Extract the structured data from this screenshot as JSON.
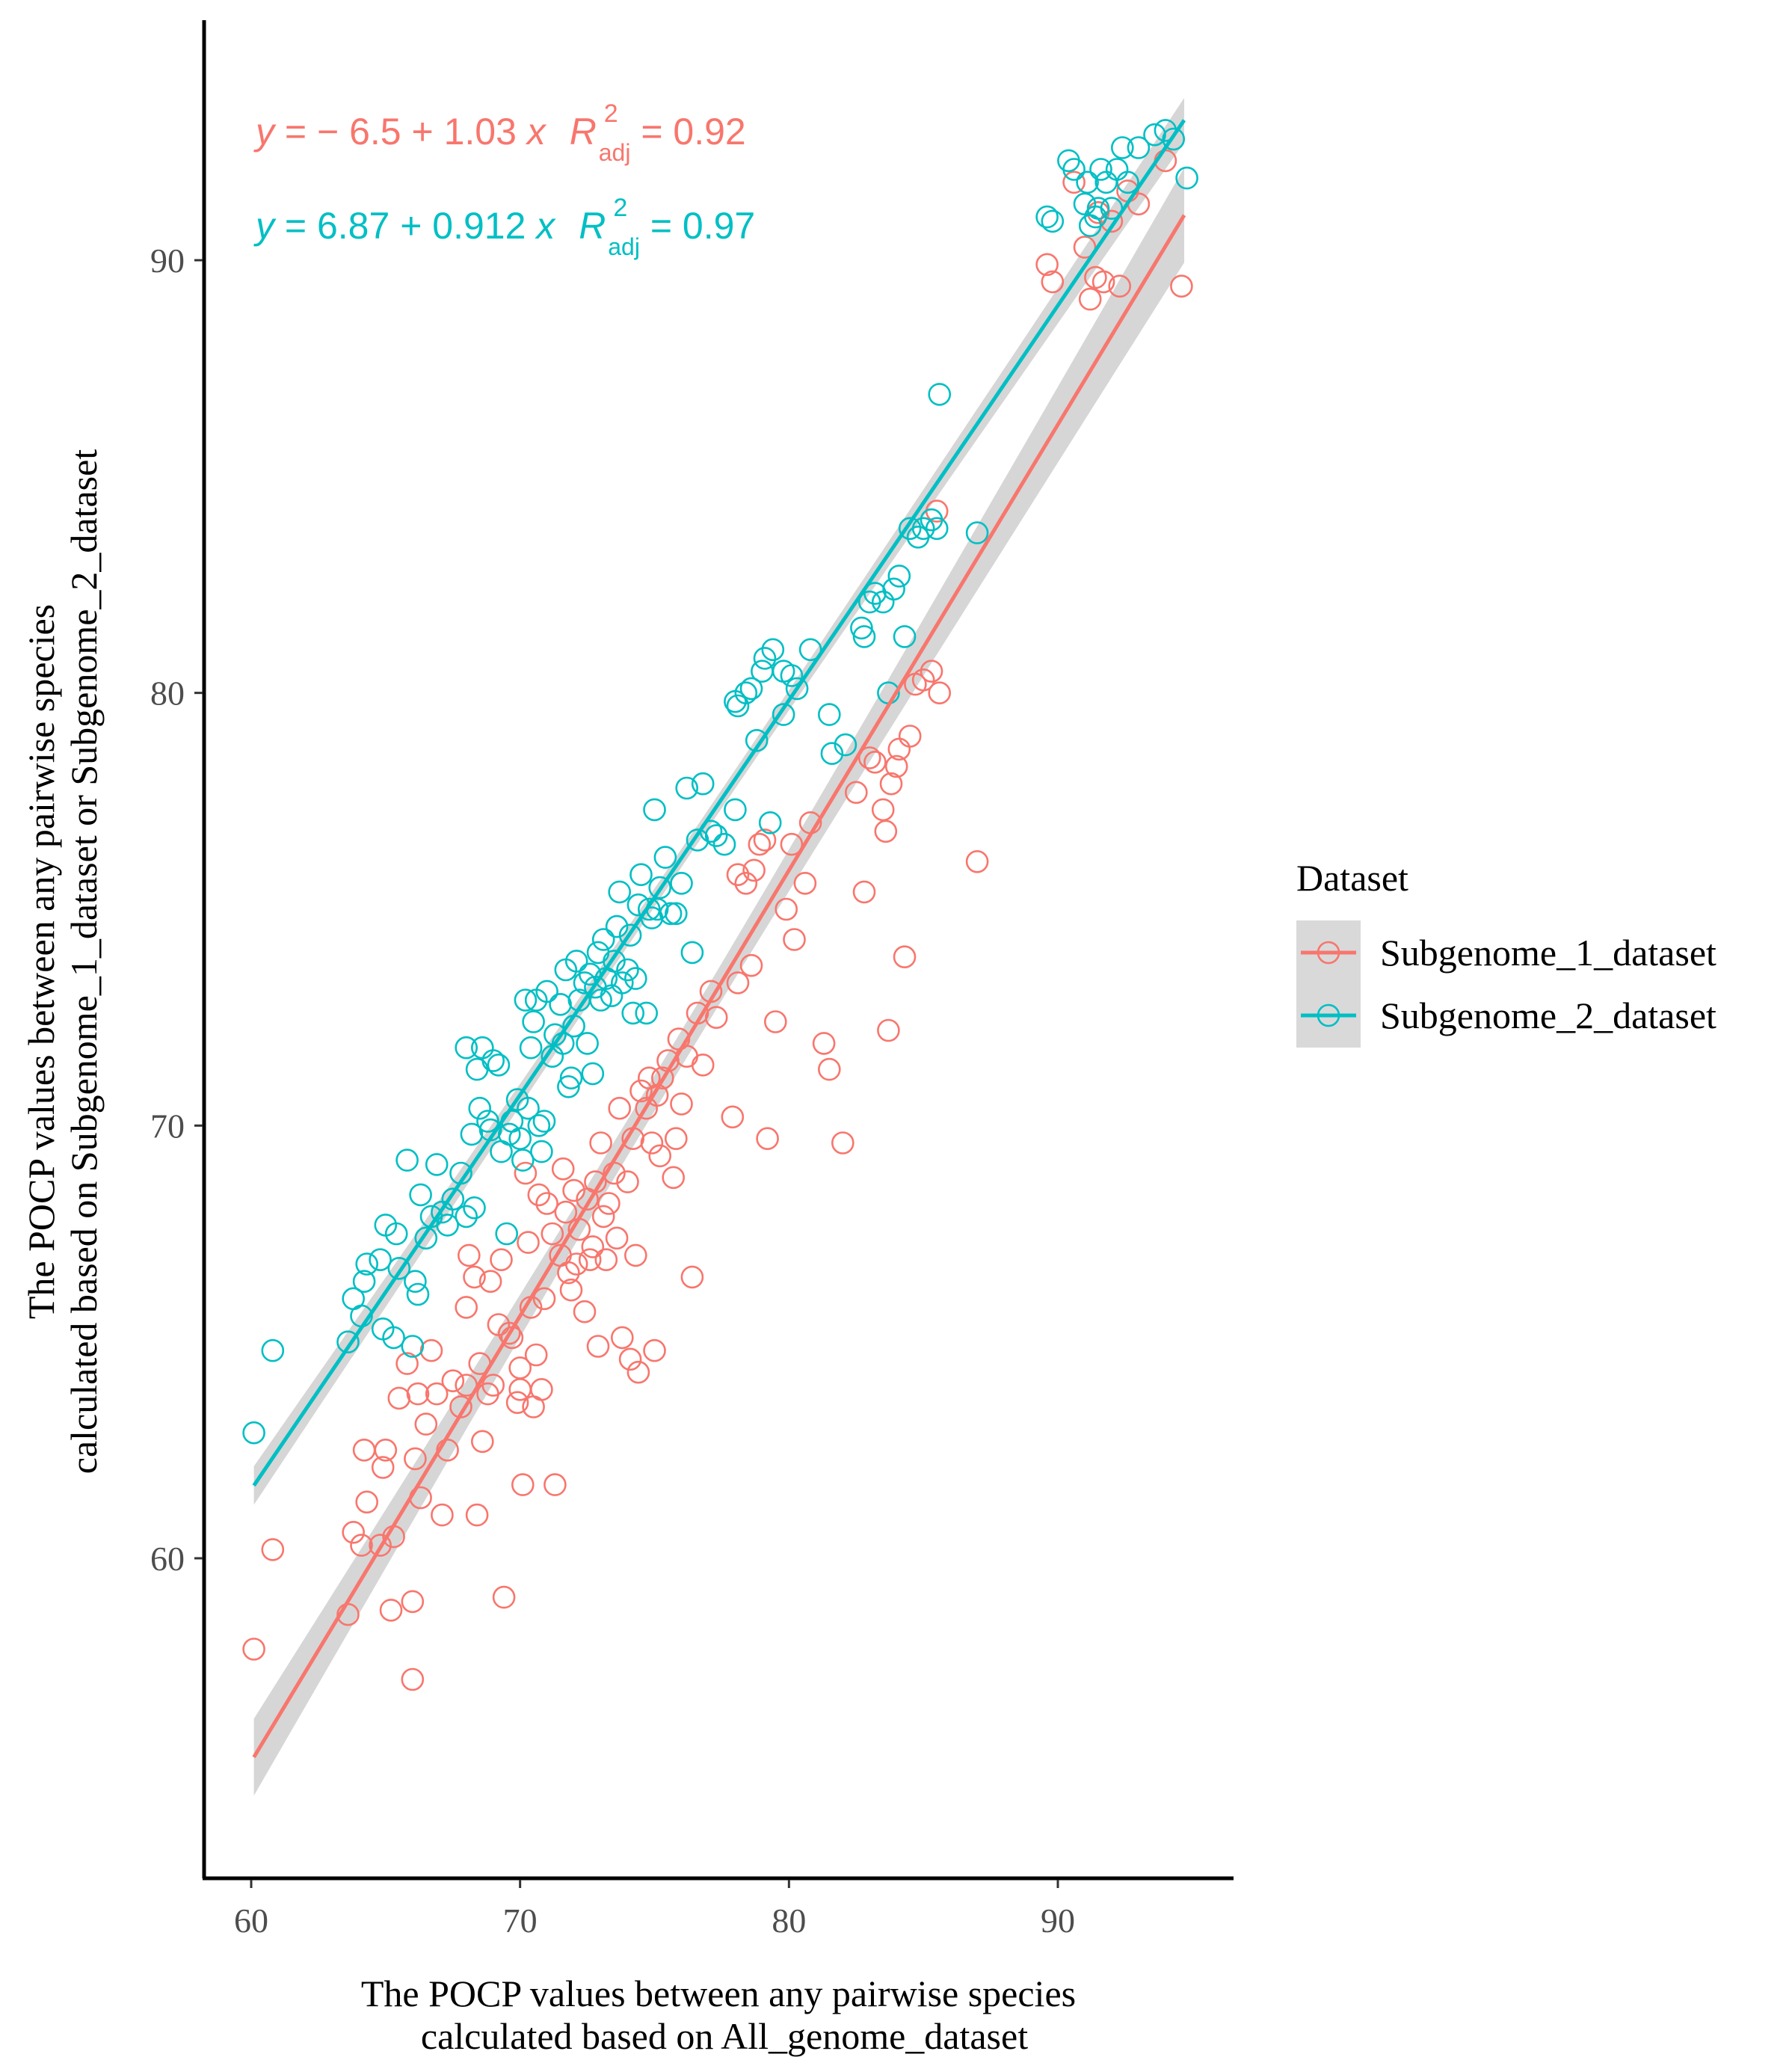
{
  "chart_data": {
    "type": "scatter",
    "title": "",
    "xlabel_lines": [
      "The POCP values between any pairwise species",
      "calculated based on All_genome_dataset"
    ],
    "ylabel_lines": [
      "The POCP values between any pairwise species",
      "calculated based on Subgenome_1_dataset or Subgenome_2_dataset"
    ],
    "xlim": [
      58.5,
      96.5
    ],
    "ylim": [
      52.5,
      95.5
    ],
    "xticks": [
      60,
      70,
      80,
      90
    ],
    "yticks": [
      60,
      70,
      80,
      90
    ],
    "grid": false,
    "legend": {
      "title": "Dataset",
      "position": "right"
    },
    "series": [
      {
        "name": "Subgenome_1_dataset",
        "color": "#F8766D",
        "fit": {
          "intercept": -6.5,
          "slope": 1.03,
          "x_range": [
            60.1,
            94.7
          ]
        },
        "equation": {
          "y_label": "y",
          "rhs": " = − 6.5 + 1.03 ",
          "x_label": "x",
          "r2_label": "R",
          "r2_sup": "2",
          "r2_sub": "adj",
          "r2_value": " = 0.92"
        },
        "points": [
          [
            60.1,
            57.9
          ],
          [
            60.8,
            60.2
          ],
          [
            63.6,
            58.7
          ],
          [
            63.8,
            60.6
          ],
          [
            64.1,
            60.3
          ],
          [
            64.2,
            62.5
          ],
          [
            64.3,
            61.3
          ],
          [
            64.8,
            60.3
          ],
          [
            64.9,
            62.1
          ],
          [
            65.0,
            62.5
          ],
          [
            65.3,
            60.5
          ],
          [
            65.2,
            58.8
          ],
          [
            65.5,
            63.7
          ],
          [
            65.8,
            64.5
          ],
          [
            66.0,
            59.0
          ],
          [
            66.0,
            57.2
          ],
          [
            66.1,
            62.3
          ],
          [
            66.2,
            63.8
          ],
          [
            66.3,
            61.4
          ],
          [
            66.5,
            63.1
          ],
          [
            66.7,
            64.8
          ],
          [
            66.9,
            63.8
          ],
          [
            67.1,
            61.0
          ],
          [
            67.3,
            62.5
          ],
          [
            67.5,
            64.1
          ],
          [
            67.8,
            63.5
          ],
          [
            68.0,
            64.0
          ],
          [
            68.0,
            65.8
          ],
          [
            68.1,
            67.0
          ],
          [
            68.3,
            66.5
          ],
          [
            68.4,
            61.0
          ],
          [
            68.5,
            64.5
          ],
          [
            68.6,
            62.7
          ],
          [
            68.8,
            63.8
          ],
          [
            68.9,
            66.4
          ],
          [
            69.0,
            64.0
          ],
          [
            69.2,
            65.4
          ],
          [
            69.3,
            66.9
          ],
          [
            69.4,
            59.1
          ],
          [
            69.6,
            65.2
          ],
          [
            69.7,
            65.1
          ],
          [
            69.9,
            63.6
          ],
          [
            70.0,
            63.9
          ],
          [
            70.0,
            64.4
          ],
          [
            70.1,
            61.7
          ],
          [
            70.2,
            68.9
          ],
          [
            70.3,
            67.3
          ],
          [
            70.4,
            65.8
          ],
          [
            70.5,
            63.5
          ],
          [
            70.6,
            64.7
          ],
          [
            70.7,
            68.4
          ],
          [
            70.8,
            63.9
          ],
          [
            70.9,
            66.0
          ],
          [
            71.0,
            68.2
          ],
          [
            71.2,
            67.5
          ],
          [
            71.3,
            61.7
          ],
          [
            71.5,
            67.0
          ],
          [
            71.6,
            69.0
          ],
          [
            71.7,
            68.0
          ],
          [
            71.8,
            66.6
          ],
          [
            71.9,
            66.2
          ],
          [
            72.0,
            68.5
          ],
          [
            72.1,
            66.8
          ],
          [
            72.2,
            67.6
          ],
          [
            72.4,
            65.7
          ],
          [
            72.5,
            68.3
          ],
          [
            72.6,
            66.9
          ],
          [
            72.7,
            67.2
          ],
          [
            72.8,
            68.7
          ],
          [
            72.9,
            64.9
          ],
          [
            73.0,
            69.6
          ],
          [
            73.1,
            67.9
          ],
          [
            73.2,
            66.9
          ],
          [
            73.3,
            68.2
          ],
          [
            73.5,
            68.9
          ],
          [
            73.6,
            67.4
          ],
          [
            73.7,
            70.4
          ],
          [
            73.8,
            65.1
          ],
          [
            74.0,
            68.7
          ],
          [
            74.1,
            64.6
          ],
          [
            74.2,
            69.7
          ],
          [
            74.3,
            67.0
          ],
          [
            74.4,
            64.3
          ],
          [
            74.5,
            70.8
          ],
          [
            74.7,
            70.4
          ],
          [
            74.8,
            71.1
          ],
          [
            74.9,
            69.6
          ],
          [
            75.0,
            64.8
          ],
          [
            75.1,
            70.7
          ],
          [
            75.2,
            69.3
          ],
          [
            75.3,
            71.1
          ],
          [
            75.5,
            71.5
          ],
          [
            75.7,
            68.8
          ],
          [
            75.8,
            69.7
          ],
          [
            75.9,
            72.0
          ],
          [
            76.0,
            70.5
          ],
          [
            76.2,
            71.6
          ],
          [
            76.4,
            66.5
          ],
          [
            76.6,
            72.6
          ],
          [
            76.8,
            71.4
          ],
          [
            77.1,
            73.1
          ],
          [
            77.3,
            72.5
          ],
          [
            77.9,
            70.2
          ],
          [
            78.1,
            73.3
          ],
          [
            78.1,
            75.8
          ],
          [
            78.4,
            75.6
          ],
          [
            78.6,
            73.7
          ],
          [
            78.7,
            75.9
          ],
          [
            78.9,
            76.5
          ],
          [
            79.1,
            76.6
          ],
          [
            79.2,
            69.7
          ],
          [
            79.5,
            72.4
          ],
          [
            79.9,
            75.0
          ],
          [
            80.1,
            76.5
          ],
          [
            80.2,
            74.3
          ],
          [
            80.6,
            75.6
          ],
          [
            80.8,
            77.0
          ],
          [
            81.3,
            71.9
          ],
          [
            81.5,
            71.3
          ],
          [
            82.0,
            69.6
          ],
          [
            82.5,
            77.7
          ],
          [
            82.8,
            75.4
          ],
          [
            83.0,
            78.5
          ],
          [
            83.2,
            78.4
          ],
          [
            83.5,
            77.3
          ],
          [
            83.6,
            76.8
          ],
          [
            83.7,
            72.2
          ],
          [
            83.8,
            77.9
          ],
          [
            84.0,
            78.3
          ],
          [
            84.1,
            78.7
          ],
          [
            84.3,
            73.9
          ],
          [
            84.5,
            79.0
          ],
          [
            84.7,
            80.2
          ],
          [
            85.0,
            80.3
          ],
          [
            85.3,
            80.5
          ],
          [
            85.5,
            84.2
          ],
          [
            85.6,
            80.0
          ],
          [
            87.0,
            76.1
          ],
          [
            89.6,
            89.9
          ],
          [
            89.8,
            89.5
          ],
          [
            90.6,
            91.8
          ],
          [
            91.0,
            90.3
          ],
          [
            91.2,
            89.1
          ],
          [
            91.4,
            89.6
          ],
          [
            91.5,
            91.1
          ],
          [
            91.7,
            89.5
          ],
          [
            92.0,
            90.9
          ],
          [
            92.3,
            89.4
          ],
          [
            92.6,
            91.6
          ],
          [
            93.0,
            91.3
          ],
          [
            94.0,
            92.3
          ],
          [
            94.6,
            89.4
          ]
        ]
      },
      {
        "name": "Subgenome_2_dataset",
        "color": "#00BFC4",
        "fit": {
          "intercept": 6.87,
          "slope": 0.912,
          "x_range": [
            60.1,
            94.7
          ]
        },
        "equation": {
          "y_label": "y",
          "rhs": " = 6.87 + 0.912 ",
          "x_label": "x",
          "r2_label": "R",
          "r2_sup": "2",
          "r2_sub": "adj",
          "r2_value": " = 0.97"
        },
        "points": [
          [
            60.1,
            62.9
          ],
          [
            60.8,
            64.8
          ],
          [
            63.6,
            65.0
          ],
          [
            63.8,
            66.0
          ],
          [
            64.1,
            65.6
          ],
          [
            64.2,
            66.4
          ],
          [
            64.3,
            66.8
          ],
          [
            64.8,
            66.9
          ],
          [
            64.9,
            65.3
          ],
          [
            65.0,
            67.7
          ],
          [
            65.3,
            65.1
          ],
          [
            65.4,
            67.5
          ],
          [
            65.5,
            66.7
          ],
          [
            65.8,
            69.2
          ],
          [
            66.0,
            64.9
          ],
          [
            66.1,
            66.4
          ],
          [
            66.2,
            66.1
          ],
          [
            66.3,
            68.4
          ],
          [
            66.5,
            67.4
          ],
          [
            66.7,
            67.9
          ],
          [
            66.9,
            69.1
          ],
          [
            67.1,
            68.0
          ],
          [
            67.3,
            67.7
          ],
          [
            67.5,
            68.3
          ],
          [
            67.8,
            68.9
          ],
          [
            68.0,
            67.9
          ],
          [
            68.0,
            71.8
          ],
          [
            68.2,
            69.8
          ],
          [
            68.3,
            68.1
          ],
          [
            68.4,
            71.3
          ],
          [
            68.5,
            70.4
          ],
          [
            68.6,
            71.8
          ],
          [
            68.8,
            70.1
          ],
          [
            68.9,
            69.9
          ],
          [
            69.0,
            71.5
          ],
          [
            69.2,
            71.4
          ],
          [
            69.3,
            69.4
          ],
          [
            69.5,
            67.5
          ],
          [
            69.6,
            69.8
          ],
          [
            69.7,
            70.1
          ],
          [
            69.9,
            70.6
          ],
          [
            70.0,
            69.7
          ],
          [
            70.1,
            69.2
          ],
          [
            70.2,
            72.9
          ],
          [
            70.3,
            70.4
          ],
          [
            70.4,
            71.8
          ],
          [
            70.5,
            72.4
          ],
          [
            70.6,
            72.9
          ],
          [
            70.7,
            70.0
          ],
          [
            70.8,
            69.4
          ],
          [
            70.9,
            70.1
          ],
          [
            71.0,
            73.1
          ],
          [
            71.2,
            71.6
          ],
          [
            71.3,
            72.1
          ],
          [
            71.5,
            72.8
          ],
          [
            71.6,
            71.9
          ],
          [
            71.7,
            73.6
          ],
          [
            71.8,
            70.9
          ],
          [
            71.9,
            71.1
          ],
          [
            72.0,
            72.3
          ],
          [
            72.1,
            73.8
          ],
          [
            72.2,
            72.9
          ],
          [
            72.4,
            73.3
          ],
          [
            72.5,
            71.9
          ],
          [
            72.6,
            73.5
          ],
          [
            72.7,
            71.2
          ],
          [
            72.8,
            73.2
          ],
          [
            72.9,
            74.0
          ],
          [
            73.0,
            72.9
          ],
          [
            73.1,
            74.3
          ],
          [
            73.2,
            73.4
          ],
          [
            73.4,
            73.0
          ],
          [
            73.5,
            73.8
          ],
          [
            73.6,
            74.6
          ],
          [
            73.7,
            75.4
          ],
          [
            73.8,
            73.3
          ],
          [
            74.0,
            73.6
          ],
          [
            74.1,
            74.4
          ],
          [
            74.2,
            72.6
          ],
          [
            74.3,
            73.4
          ],
          [
            74.4,
            75.1
          ],
          [
            74.5,
            75.8
          ],
          [
            74.7,
            72.6
          ],
          [
            74.8,
            75.0
          ],
          [
            74.9,
            74.8
          ],
          [
            75.0,
            77.3
          ],
          [
            75.1,
            75.0
          ],
          [
            75.2,
            75.5
          ],
          [
            75.4,
            76.2
          ],
          [
            75.6,
            74.9
          ],
          [
            75.8,
            74.9
          ],
          [
            76.0,
            75.6
          ],
          [
            76.2,
            77.8
          ],
          [
            76.4,
            74.0
          ],
          [
            76.6,
            76.6
          ],
          [
            76.8,
            77.9
          ],
          [
            77.1,
            76.8
          ],
          [
            77.3,
            76.7
          ],
          [
            77.6,
            76.5
          ],
          [
            78.0,
            77.3
          ],
          [
            78.0,
            79.8
          ],
          [
            78.1,
            79.7
          ],
          [
            78.4,
            80.0
          ],
          [
            78.6,
            80.1
          ],
          [
            78.8,
            78.9
          ],
          [
            79.0,
            80.5
          ],
          [
            79.1,
            80.8
          ],
          [
            79.3,
            77.0
          ],
          [
            79.4,
            81.0
          ],
          [
            79.8,
            80.5
          ],
          [
            79.8,
            79.5
          ],
          [
            80.1,
            80.4
          ],
          [
            80.3,
            80.1
          ],
          [
            80.8,
            81.0
          ],
          [
            81.5,
            79.5
          ],
          [
            81.6,
            78.6
          ],
          [
            82.1,
            78.8
          ],
          [
            82.7,
            81.5
          ],
          [
            82.8,
            81.3
          ],
          [
            83.0,
            82.1
          ],
          [
            83.2,
            82.3
          ],
          [
            83.5,
            82.1
          ],
          [
            83.7,
            80.0
          ],
          [
            83.9,
            82.4
          ],
          [
            84.1,
            82.7
          ],
          [
            84.3,
            81.3
          ],
          [
            84.5,
            83.8
          ],
          [
            84.8,
            83.6
          ],
          [
            85.0,
            83.8
          ],
          [
            85.3,
            84.0
          ],
          [
            85.5,
            83.8
          ],
          [
            85.6,
            86.9
          ],
          [
            87.0,
            83.7
          ],
          [
            89.6,
            91.0
          ],
          [
            89.8,
            90.9
          ],
          [
            90.4,
            92.3
          ],
          [
            90.6,
            92.1
          ],
          [
            91.0,
            91.3
          ],
          [
            91.1,
            91.8
          ],
          [
            91.2,
            90.8
          ],
          [
            91.4,
            91.0
          ],
          [
            91.5,
            91.2
          ],
          [
            91.6,
            92.1
          ],
          [
            91.8,
            91.8
          ],
          [
            92.0,
            91.2
          ],
          [
            92.2,
            92.1
          ],
          [
            92.4,
            92.6
          ],
          [
            92.6,
            91.8
          ],
          [
            93.0,
            92.6
          ],
          [
            93.6,
            92.9
          ],
          [
            94.0,
            93.0
          ],
          [
            94.3,
            92.8
          ],
          [
            94.8,
            91.9
          ]
        ]
      }
    ]
  }
}
